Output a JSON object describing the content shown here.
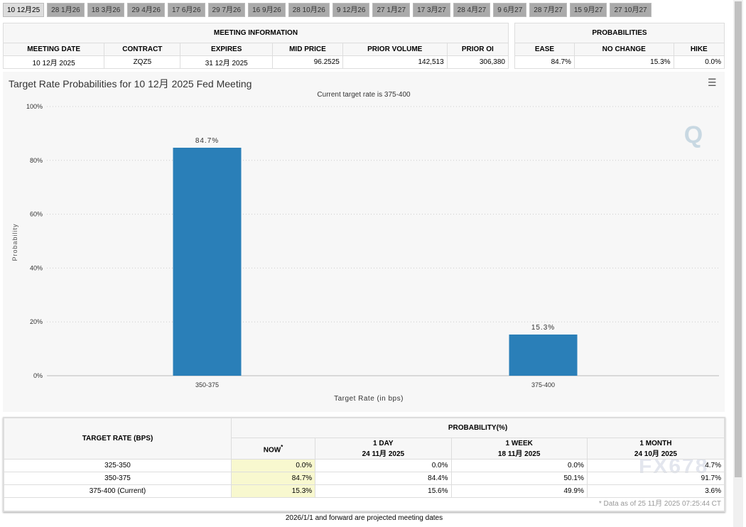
{
  "tabs": [
    "10 12月25",
    "28 1月26",
    "18 3月26",
    "29 4月26",
    "17 6月26",
    "29 7月26",
    "16 9月26",
    "28 10月26",
    "9 12月26",
    "27 1月27",
    "17 3月27",
    "28 4月27",
    "9 6月27",
    "28 7月27",
    "15 9月27",
    "27 10月27"
  ],
  "meeting_info": {
    "title": "MEETING INFORMATION",
    "headers": [
      "MEETING DATE",
      "CONTRACT",
      "EXPIRES",
      "MID PRICE",
      "PRIOR VOLUME",
      "PRIOR OI"
    ],
    "values": [
      "10 12月 2025",
      "ZQZ5",
      "31 12月 2025",
      "96.2525",
      "142,513",
      "306,380"
    ]
  },
  "probabilities": {
    "title": "PROBABILITIES",
    "headers": [
      "EASE",
      "NO CHANGE",
      "HIKE"
    ],
    "values": [
      "84.7%",
      "15.3%",
      "0.0%"
    ]
  },
  "chart": {
    "title": "Target Rate Probabilities for 10 12月 2025 Fed Meeting",
    "subtitle": "Current target rate is 375-400"
  },
  "chart_data": {
    "type": "bar",
    "categories": [
      "350-375",
      "375-400"
    ],
    "values": [
      84.7,
      15.3
    ],
    "data_labels": [
      "84.7%",
      "15.3%"
    ],
    "xlabel": "Target Rate (in bps)",
    "ylabel": "Probability",
    "ylim": [
      0,
      100
    ],
    "yticks": [
      "0%",
      "20%",
      "40%",
      "60%",
      "80%",
      "100%"
    ],
    "grid": true,
    "color": "#2a7fb8"
  },
  "bottom_table": {
    "rate_header": "TARGET RATE (BPS)",
    "prob_header": "PROBABILITY(%)",
    "cols": [
      {
        "l1": "NOW",
        "l2": ""
      },
      {
        "l1": "1 DAY",
        "l2": "24 11月 2025"
      },
      {
        "l1": "1 WEEK",
        "l2": "18 11月 2025"
      },
      {
        "l1": "1 MONTH",
        "l2": "24 10月 2025"
      }
    ],
    "now_star": "*",
    "rows": [
      {
        "rate": "325-350",
        "v": [
          "0.0%",
          "0.0%",
          "0.0%",
          "4.7%"
        ]
      },
      {
        "rate": "350-375",
        "v": [
          "84.7%",
          "84.4%",
          "50.1%",
          "91.7%"
        ]
      },
      {
        "rate": "375-400 (Current)",
        "v": [
          "15.3%",
          "15.6%",
          "49.9%",
          "3.6%"
        ]
      }
    ],
    "note": "* Data as of 25 11月 2025 07:25:44 CT"
  },
  "footer": "2026/1/1 and forward are projected meeting dates",
  "watermark": "FX678"
}
